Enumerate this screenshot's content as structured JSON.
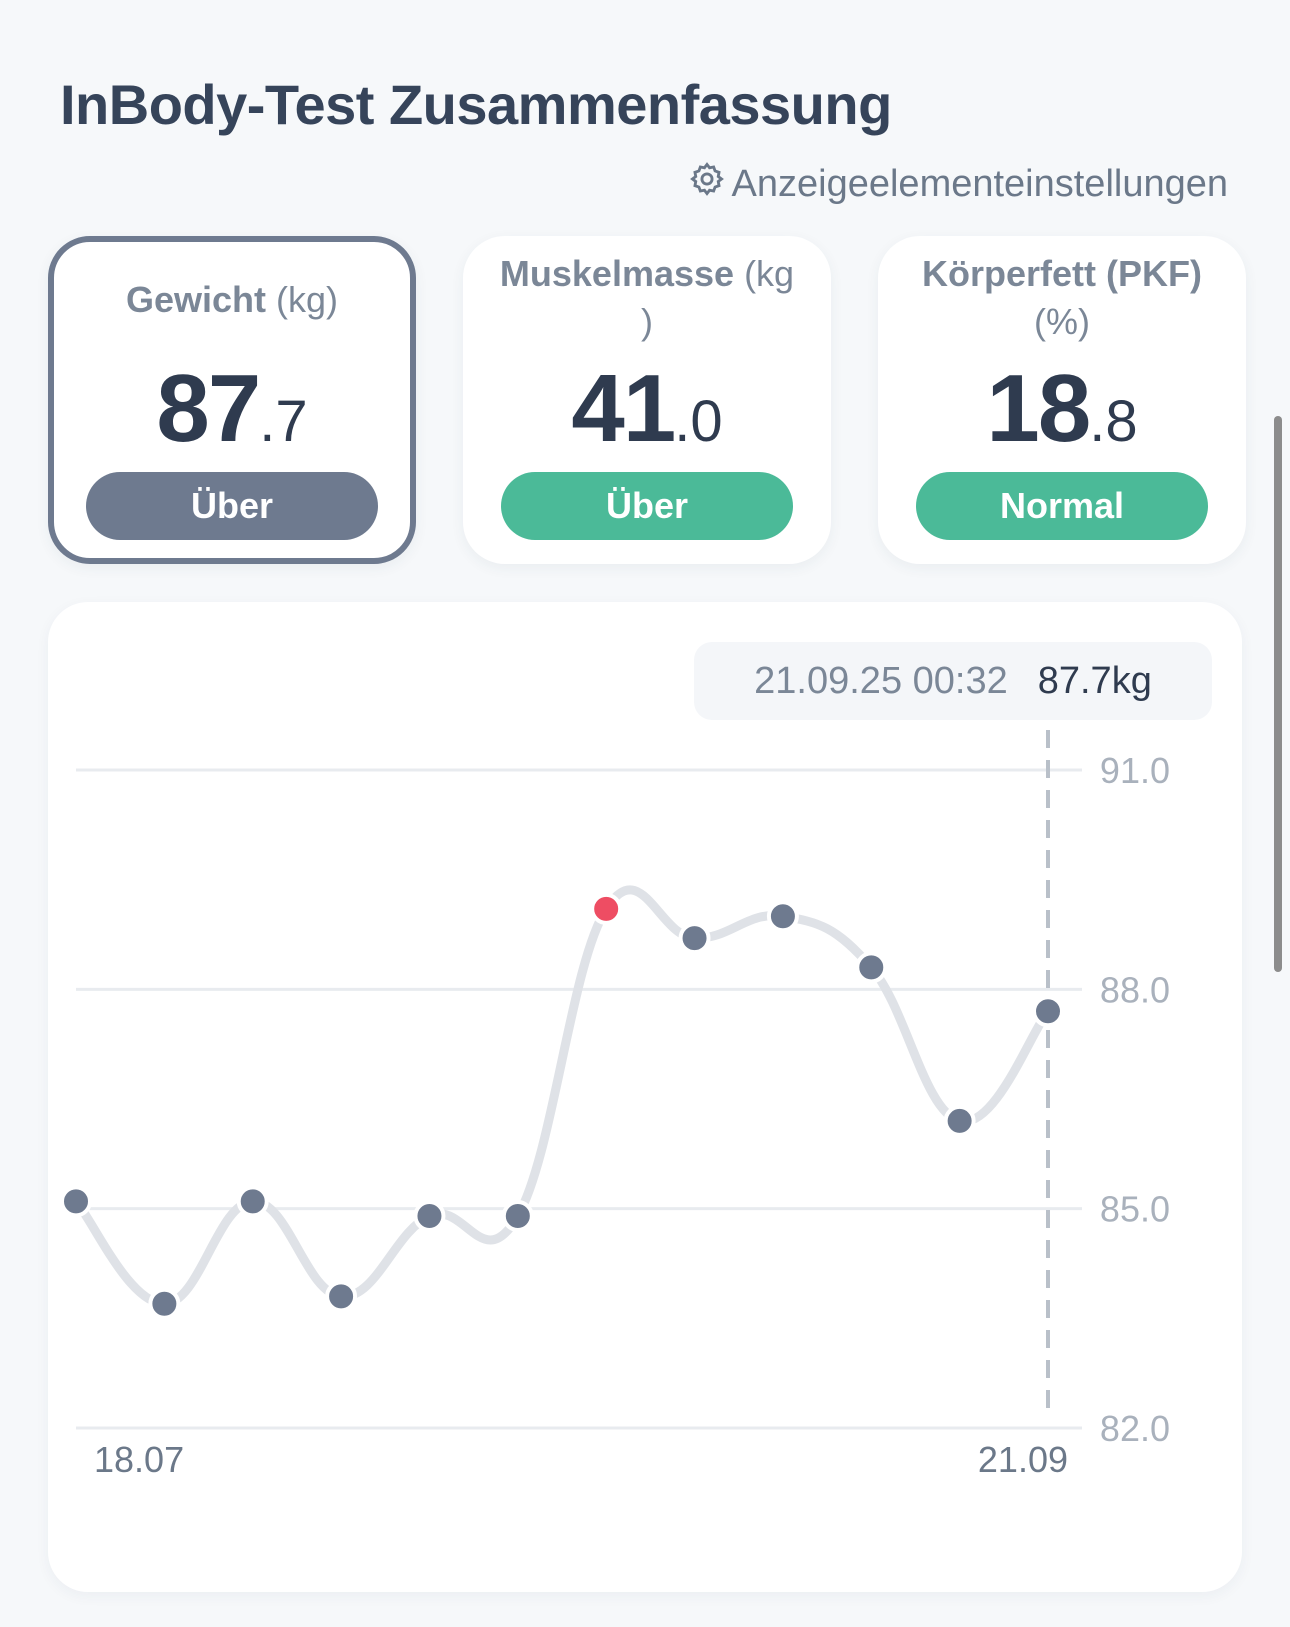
{
  "page": {
    "title": "InBody-Test Zusammenfassung",
    "settings_label": "Anzeigeelementeinstellungen"
  },
  "cards": [
    {
      "name": "Gewicht",
      "unit": "(kg)",
      "int": "87",
      "dec": ".7",
      "status": "Über",
      "status_color": "#6e7a8f",
      "selected": true
    },
    {
      "name": "Muskelmasse",
      "unit": "(kg",
      "unit2": ")",
      "int": "41",
      "dec": ".0",
      "status": "Über",
      "status_color": "#4bba98",
      "selected": false
    },
    {
      "name": "Körperfett (PKF)",
      "unit": "(%)",
      "int": "18",
      "dec": ".8",
      "status": "Normal",
      "status_color": "#4bba98",
      "selected": false
    }
  ],
  "tooltip": {
    "date": "21.09.25 00:32",
    "value": "87.7kg"
  },
  "chart_data": {
    "type": "line",
    "title": "",
    "xlabel": "",
    "ylabel": "",
    "ylim": [
      82.0,
      91.0
    ],
    "y_ticks": [
      "91.0",
      "88.0",
      "85.0",
      "82.0"
    ],
    "x_tick_labels": [
      "18.07",
      "21.09"
    ],
    "series": [
      {
        "values": [
          85.1,
          83.7,
          85.1,
          83.8,
          84.9,
          84.9,
          89.1,
          88.7,
          89.0,
          88.3,
          86.2,
          87.7
        ]
      }
    ],
    "highlight_index": 6,
    "selected_index": 11,
    "colors": {
      "line": "#dfe2e7",
      "point": "#6e7a8f",
      "highlight": "#ee4d63",
      "grid": "#e8ebef"
    }
  }
}
